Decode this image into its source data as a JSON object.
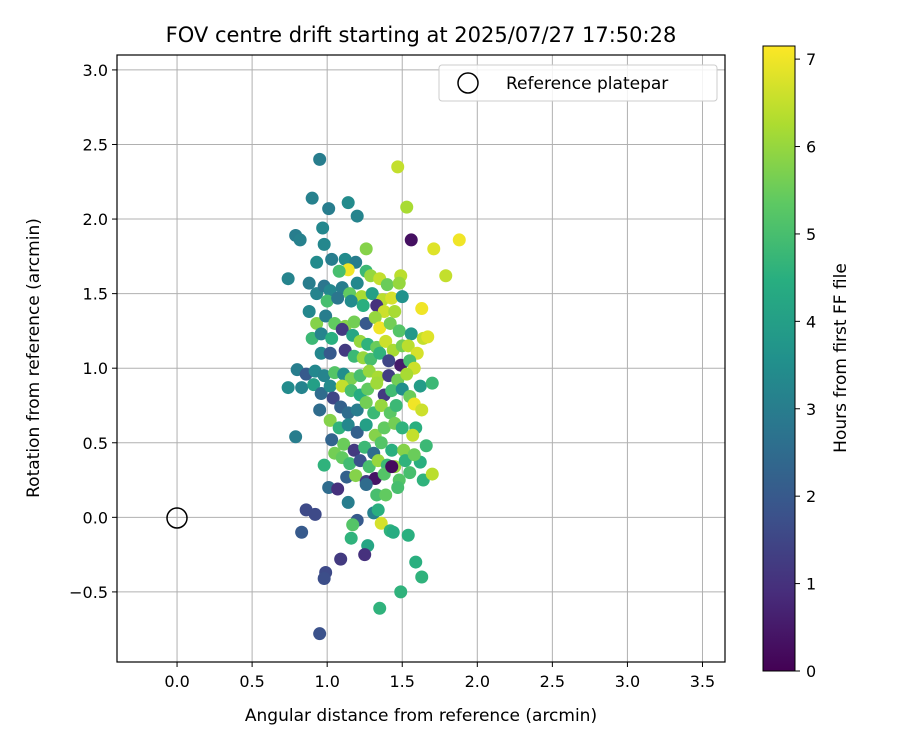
{
  "chart_data": {
    "type": "scatter",
    "title": "FOV centre drift starting at 2025/07/27 17:50:28",
    "xlabel": "Angular distance from reference (arcmin)",
    "ylabel": "Rotation from reference (arcmin)",
    "xlim": [
      -0.4,
      3.65
    ],
    "ylim": [
      -0.97,
      3.1
    ],
    "xticks": [
      "0.0",
      "0.5",
      "1.0",
      "1.5",
      "2.0",
      "2.5",
      "3.0",
      "3.5"
    ],
    "yticks": [
      "−0.5",
      "0.0",
      "0.5",
      "1.0",
      "1.5",
      "2.0",
      "2.5",
      "3.0"
    ],
    "grid": true,
    "legend": {
      "placement": "top-right",
      "entries": [
        "Reference platepar"
      ]
    },
    "reference_point": {
      "x": 0.0,
      "y": 0.0
    },
    "colorbar": {
      "label": "Hours from first FF file",
      "colormap": "viridis",
      "range": [
        0,
        7.15
      ],
      "ticks": [
        "0",
        "1",
        "2",
        "3",
        "4",
        "5",
        "6",
        "7"
      ]
    },
    "points": [
      [
        0.95,
        2.4,
        3.0
      ],
      [
        1.47,
        2.35,
        6.5
      ],
      [
        0.9,
        2.14,
        3.1
      ],
      [
        1.14,
        2.11,
        3.4
      ],
      [
        1.01,
        2.07,
        3.0
      ],
      [
        1.2,
        2.02,
        3.2
      ],
      [
        1.53,
        2.08,
        6.2
      ],
      [
        0.97,
        1.94,
        3.3
      ],
      [
        0.79,
        1.89,
        3.0
      ],
      [
        0.82,
        1.86,
        3.1
      ],
      [
        0.98,
        1.83,
        3.3
      ],
      [
        1.56,
        1.86,
        0.3
      ],
      [
        1.71,
        1.8,
        6.8
      ],
      [
        1.88,
        1.86,
        7.0
      ],
      [
        1.26,
        1.8,
        5.8
      ],
      [
        0.93,
        1.71,
        3.4
      ],
      [
        1.03,
        1.73,
        3.0
      ],
      [
        1.12,
        1.73,
        3.4
      ],
      [
        1.19,
        1.71,
        3.0
      ],
      [
        1.26,
        1.65,
        4.8
      ],
      [
        1.79,
        1.62,
        6.5
      ],
      [
        1.14,
        1.66,
        7.0
      ],
      [
        1.08,
        1.65,
        5.0
      ],
      [
        1.29,
        1.62,
        6.0
      ],
      [
        1.35,
        1.6,
        6.5
      ],
      [
        1.4,
        1.56,
        5.5
      ],
      [
        1.49,
        1.62,
        6.4
      ],
      [
        1.48,
        1.57,
        6.0
      ],
      [
        0.74,
        1.6,
        3.2
      ],
      [
        0.88,
        1.57,
        3.0
      ],
      [
        0.93,
        1.5,
        3.2
      ],
      [
        0.98,
        1.55,
        2.8
      ],
      [
        1.02,
        1.52,
        3.3
      ],
      [
        1.1,
        1.54,
        3.0
      ],
      [
        1.15,
        1.5,
        5.4
      ],
      [
        1.2,
        1.57,
        3.3
      ],
      [
        1.23,
        1.48,
        6.2
      ],
      [
        1.3,
        1.5,
        4.0
      ],
      [
        1.37,
        1.46,
        6.4
      ],
      [
        1.43,
        1.47,
        6.7
      ],
      [
        1.5,
        1.48,
        3.6
      ],
      [
        1.0,
        1.45,
        5.0
      ],
      [
        1.07,
        1.47,
        2.8
      ],
      [
        1.16,
        1.45,
        3.4
      ],
      [
        1.24,
        1.42,
        4.5
      ],
      [
        1.33,
        1.42,
        1.0
      ],
      [
        1.38,
        1.38,
        6.6
      ],
      [
        1.45,
        1.38,
        6.2
      ],
      [
        1.63,
        1.4,
        7.0
      ],
      [
        0.88,
        1.38,
        3.3
      ],
      [
        0.93,
        1.3,
        5.8
      ],
      [
        0.99,
        1.35,
        3.0
      ],
      [
        1.05,
        1.3,
        5.4
      ],
      [
        1.12,
        1.28,
        5.8
      ],
      [
        1.18,
        1.31,
        5.6
      ],
      [
        1.26,
        1.3,
        2.0
      ],
      [
        1.32,
        1.34,
        6.0
      ],
      [
        1.35,
        1.27,
        7.0
      ],
      [
        1.42,
        1.3,
        5.6
      ],
      [
        1.48,
        1.25,
        5.2
      ],
      [
        1.56,
        1.23,
        3.8
      ],
      [
        1.64,
        1.2,
        6.5
      ],
      [
        1.67,
        1.21,
        6.8
      ],
      [
        0.9,
        1.2,
        4.8
      ],
      [
        0.96,
        1.23,
        3.2
      ],
      [
        1.03,
        1.2,
        4.5
      ],
      [
        1.1,
        1.26,
        1.2
      ],
      [
        1.17,
        1.22,
        4.2
      ],
      [
        1.22,
        1.18,
        6.0
      ],
      [
        1.27,
        1.16,
        4.6
      ],
      [
        1.33,
        1.14,
        5.5
      ],
      [
        1.39,
        1.18,
        6.6
      ],
      [
        1.44,
        1.12,
        6.2
      ],
      [
        1.5,
        1.15,
        5.6
      ],
      [
        1.54,
        1.15,
        6.4
      ],
      [
        1.6,
        1.1,
        6.7
      ],
      [
        0.96,
        1.1,
        3.3
      ],
      [
        1.02,
        1.1,
        2.0
      ],
      [
        1.12,
        1.12,
        1.2
      ],
      [
        1.18,
        1.08,
        4.8
      ],
      [
        1.24,
        1.07,
        6.0
      ],
      [
        1.29,
        1.06,
        5.0
      ],
      [
        1.35,
        1.1,
        4.6
      ],
      [
        1.41,
        1.05,
        1.5
      ],
      [
        1.49,
        1.02,
        0.5
      ],
      [
        1.55,
        1.05,
        5.0
      ],
      [
        1.58,
        1.0,
        6.6
      ],
      [
        0.8,
        0.99,
        3.0
      ],
      [
        0.86,
        0.96,
        2.0
      ],
      [
        0.92,
        0.98,
        3.3
      ],
      [
        0.98,
        0.95,
        3.2
      ],
      [
        1.05,
        0.97,
        5.2
      ],
      [
        1.11,
        0.96,
        3.5
      ],
      [
        1.16,
        0.93,
        5.7
      ],
      [
        1.22,
        0.95,
        5.0
      ],
      [
        1.28,
        0.98,
        6.0
      ],
      [
        1.34,
        0.94,
        6.2
      ],
      [
        1.41,
        0.95,
        1.3
      ],
      [
        1.47,
        0.92,
        5.6
      ],
      [
        1.53,
        0.96,
        6.2
      ],
      [
        1.62,
        0.88,
        3.9
      ],
      [
        1.7,
        0.9,
        4.8
      ],
      [
        0.74,
        0.87,
        3.4
      ],
      [
        0.83,
        0.87,
        3.2
      ],
      [
        0.91,
        0.89,
        4.0
      ],
      [
        0.96,
        0.83,
        2.5
      ],
      [
        1.02,
        0.88,
        3.4
      ],
      [
        1.1,
        0.88,
        6.5
      ],
      [
        1.16,
        0.85,
        5.0
      ],
      [
        1.22,
        0.82,
        4.4
      ],
      [
        1.27,
        0.86,
        5.4
      ],
      [
        1.33,
        0.9,
        6.1
      ],
      [
        1.38,
        0.82,
        1.2
      ],
      [
        1.43,
        0.85,
        4.9
      ],
      [
        1.5,
        0.86,
        3.5
      ],
      [
        1.55,
        0.81,
        5.5
      ],
      [
        1.04,
        0.8,
        1.5
      ],
      [
        1.09,
        0.74,
        2.2
      ],
      [
        1.14,
        0.7,
        2.5
      ],
      [
        1.2,
        0.72,
        3.0
      ],
      [
        1.26,
        0.77,
        5.6
      ],
      [
        1.31,
        0.7,
        4.8
      ],
      [
        1.36,
        0.75,
        6.0
      ],
      [
        1.42,
        0.7,
        5.3
      ],
      [
        1.46,
        0.75,
        4.8
      ],
      [
        1.58,
        0.76,
        7.0
      ],
      [
        1.63,
        0.72,
        6.6
      ],
      [
        0.95,
        0.72,
        2.5
      ],
      [
        1.02,
        0.65,
        5.8
      ],
      [
        1.08,
        0.6,
        4.6
      ],
      [
        1.14,
        0.62,
        3.3
      ],
      [
        1.2,
        0.57,
        2.2
      ],
      [
        1.26,
        0.62,
        4.0
      ],
      [
        1.32,
        0.55,
        5.8
      ],
      [
        1.38,
        0.6,
        5.4
      ],
      [
        1.45,
        0.63,
        5.6
      ],
      [
        1.5,
        0.6,
        4.6
      ],
      [
        1.59,
        0.6,
        4.5
      ],
      [
        0.79,
        0.54,
        3.0
      ],
      [
        1.03,
        0.52,
        2.3
      ],
      [
        1.11,
        0.49,
        5.5
      ],
      [
        1.18,
        0.45,
        1.2
      ],
      [
        1.25,
        0.47,
        4.8
      ],
      [
        1.31,
        0.43,
        2.5
      ],
      [
        1.36,
        0.5,
        5.2
      ],
      [
        1.43,
        0.45,
        4.5
      ],
      [
        1.51,
        0.45,
        5.8
      ],
      [
        1.57,
        0.55,
        6.5
      ],
      [
        1.62,
        0.37,
        4.5
      ],
      [
        1.66,
        0.48,
        4.8
      ],
      [
        1.05,
        0.43,
        5.6
      ],
      [
        1.1,
        0.4,
        5.4
      ],
      [
        1.15,
        0.36,
        4.9
      ],
      [
        1.22,
        0.38,
        1.8
      ],
      [
        1.28,
        0.34,
        5.0
      ],
      [
        1.34,
        0.38,
        6.0
      ],
      [
        1.4,
        0.35,
        4.8
      ],
      [
        1.45,
        0.34,
        6.0
      ],
      [
        1.52,
        0.38,
        4.6
      ],
      [
        1.58,
        0.42,
        5.5
      ],
      [
        1.64,
        0.25,
        4.6
      ],
      [
        1.7,
        0.29,
        6.4
      ],
      [
        0.98,
        0.35,
        4.6
      ],
      [
        1.13,
        0.27,
        2.2
      ],
      [
        1.19,
        0.28,
        5.8
      ],
      [
        1.26,
        0.24,
        1.3
      ],
      [
        1.32,
        0.26,
        0.4
      ],
      [
        1.38,
        0.29,
        5.2
      ],
      [
        1.43,
        0.34,
        0.2
      ],
      [
        1.48,
        0.25,
        5.2
      ],
      [
        1.55,
        0.3,
        5.0
      ],
      [
        1.01,
        0.2,
        2.5
      ],
      [
        1.07,
        0.19,
        1.0
      ],
      [
        1.26,
        0.22,
        2.5
      ],
      [
        1.33,
        0.15,
        5.0
      ],
      [
        1.39,
        0.15,
        5.4
      ],
      [
        1.47,
        0.2,
        5.0
      ],
      [
        1.14,
        0.1,
        3.0
      ],
      [
        1.31,
        0.03,
        3.1
      ],
      [
        1.34,
        0.05,
        4.5
      ],
      [
        1.2,
        -0.02,
        2.0
      ],
      [
        0.86,
        0.05,
        1.6
      ],
      [
        0.92,
        0.02,
        1.6
      ],
      [
        1.17,
        -0.05,
        5.2
      ],
      [
        1.36,
        -0.04,
        6.7
      ],
      [
        1.42,
        -0.09,
        4.6
      ],
      [
        1.44,
        -0.1,
        4.4
      ],
      [
        1.54,
        -0.12,
        4.5
      ],
      [
        0.83,
        -0.1,
        2.0
      ],
      [
        1.16,
        -0.14,
        4.6
      ],
      [
        1.27,
        -0.19,
        4.2
      ],
      [
        1.25,
        -0.25,
        1.0
      ],
      [
        1.09,
        -0.28,
        1.2
      ],
      [
        0.99,
        -0.37,
        1.6
      ],
      [
        0.98,
        -0.41,
        1.7
      ],
      [
        1.59,
        -0.3,
        4.5
      ],
      [
        1.63,
        -0.4,
        4.6
      ],
      [
        1.49,
        -0.5,
        4.6
      ],
      [
        1.35,
        -0.61,
        4.6
      ],
      [
        0.95,
        -0.78,
        1.8
      ]
    ]
  }
}
